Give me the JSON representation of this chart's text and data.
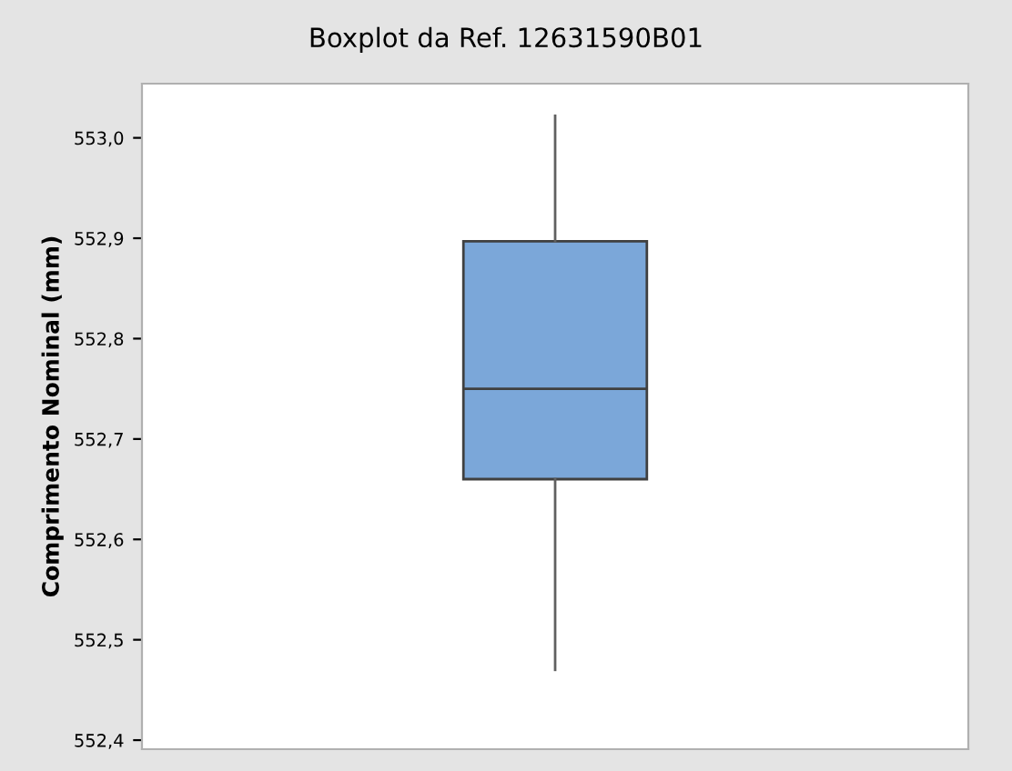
{
  "chart_data": {
    "type": "box",
    "title": "Boxplot da Ref. 12631590B01",
    "ylabel": "Comprimento Nominal (mm)",
    "categories": [
      null
    ],
    "boxes": [
      {
        "low": 552.47,
        "q1": 552.66,
        "median": 552.75,
        "q3": 552.897,
        "high": 553.022
      }
    ],
    "color": "#7ba7d9",
    "ylim": [
      552.391,
      553.054
    ],
    "yticks": [
      {
        "value": 552.4,
        "label": "552,4"
      },
      {
        "value": 552.5,
        "label": "552,5"
      },
      {
        "value": 552.6,
        "label": "552,6"
      },
      {
        "value": 552.7,
        "label": "552,7"
      },
      {
        "value": 552.8,
        "label": "552,8"
      },
      {
        "value": 552.9,
        "label": "552,9"
      },
      {
        "value": 553.0,
        "label": "553,0"
      }
    ],
    "grid": false
  }
}
